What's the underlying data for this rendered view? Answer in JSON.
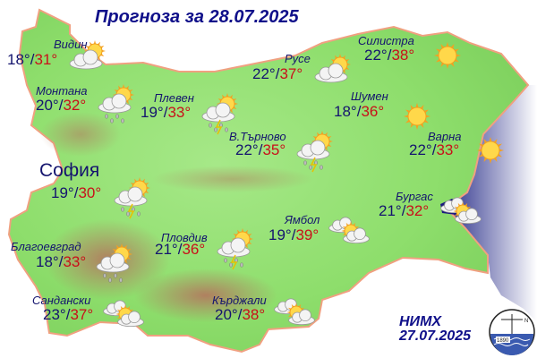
{
  "title": "Прогноза за 28.07.2025",
  "colors": {
    "low_temp": "#14146e",
    "high_temp": "#c8101a",
    "sea": "#2a2f8a",
    "land": "#8ee070"
  },
  "cities": [
    {
      "name": "Видин",
      "low": "18°",
      "high": "31°",
      "icon": "partly-cloudy-icon"
    },
    {
      "name": "Монтана",
      "low": "20°",
      "high": "32°",
      "icon": "cloud-sun-rain-icon"
    },
    {
      "name": "Плевен",
      "low": "19°",
      "high": "33°",
      "icon": "thunderstorm-icon"
    },
    {
      "name": "Русе",
      "low": "22°",
      "high": "37°",
      "icon": "partly-cloudy-icon"
    },
    {
      "name": "Силистра",
      "low": "22°",
      "high": "38°",
      "icon": "sun-icon"
    },
    {
      "name": "Шумен",
      "low": "18°",
      "high": "36°",
      "icon": "sun-icon"
    },
    {
      "name": "Варна",
      "low": "22°",
      "high": "33°",
      "icon": "sun-icon"
    },
    {
      "name": "В.Търново",
      "low": "22°",
      "high": "35°",
      "icon": "thunderstorm-icon"
    },
    {
      "name": "София",
      "low": "19°",
      "high": "30°",
      "icon": "thunderstorm-icon"
    },
    {
      "name": "Благоевград",
      "low": "18°",
      "high": "33°",
      "icon": "cloud-sun-rain-icon"
    },
    {
      "name": "Пловдив",
      "low": "21°",
      "high": "36°",
      "icon": "thunderstorm-icon"
    },
    {
      "name": "Ямбол",
      "low": "19°",
      "high": "39°",
      "icon": "sun-clouds-icon"
    },
    {
      "name": "Бургас",
      "low": "21°",
      "high": "32°",
      "icon": "sun-clouds-icon"
    },
    {
      "name": "Сандански",
      "low": "23°",
      "high": "37°",
      "icon": "sun-clouds-icon"
    },
    {
      "name": "Кърджали",
      "low": "20°",
      "high": "38°",
      "icon": "sun-clouds-icon"
    }
  ],
  "credit": {
    "org": "НИМХ",
    "date": "27.07.2025"
  },
  "logo": {
    "year": "1890",
    "north": "N"
  }
}
